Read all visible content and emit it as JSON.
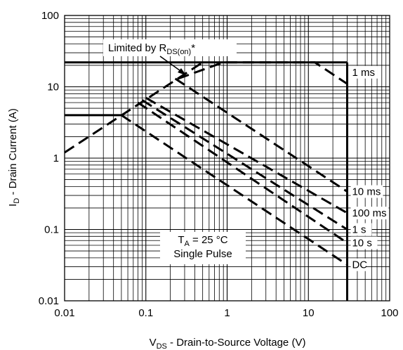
{
  "chart_data": {
    "type": "line",
    "x_scale": "log",
    "y_scale": "log",
    "xlim": [
      0.01,
      100
    ],
    "ylim": [
      0.01,
      100
    ],
    "grid": true,
    "xlabel": {
      "main": "V",
      "sub": "DS",
      "rest": " - Drain-to-Source Voltage (V)"
    },
    "ylabel": {
      "main": "I",
      "sub": "D",
      "rest": " - Drain Current (A)"
    },
    "x_ticks": [
      {
        "value": 0.01,
        "label": "0.01"
      },
      {
        "value": 0.1,
        "label": "0.1"
      },
      {
        "value": 1,
        "label": "1"
      },
      {
        "value": 10,
        "label": "10"
      },
      {
        "value": 100,
        "label": "100"
      }
    ],
    "y_ticks": [
      {
        "value": 100,
        "label": "100"
      },
      {
        "value": 10,
        "label": "10"
      },
      {
        "value": 1,
        "label": "1"
      },
      {
        "value": 0.1,
        "label": "0.1"
      },
      {
        "value": 0.01,
        "label": "0.01"
      }
    ],
    "limits": {
      "rds_on_line": [
        [
          0.01,
          1.2
        ],
        [
          0.5,
          22
        ]
      ],
      "current_limit_pulsed": [
        [
          0.01,
          22
        ],
        [
          30,
          22
        ]
      ],
      "current_limit_dc": [
        [
          0.01,
          4
        ],
        [
          0.05,
          4
        ]
      ],
      "voltage_limit": [
        [
          30,
          22
        ],
        [
          30,
          0.01
        ]
      ]
    },
    "series": [
      {
        "name": "1 ms",
        "style": "dashed",
        "points": [
          [
            0.25,
            13
          ],
          [
            0.9,
            22
          ],
          [
            12,
            22
          ],
          [
            30,
            11
          ]
        ]
      },
      {
        "name": "10 ms",
        "style": "dashed",
        "points": [
          [
            0.23,
            13
          ],
          [
            30,
            0.34
          ]
        ]
      },
      {
        "name": "100 ms",
        "style": "dashed",
        "points": [
          [
            0.1,
            7
          ],
          [
            30,
            0.17
          ]
        ]
      },
      {
        "name": "1 s",
        "style": "dashed",
        "points": [
          [
            0.09,
            6.5
          ],
          [
            30,
            0.1
          ]
        ]
      },
      {
        "name": "10 s",
        "style": "dashed",
        "points": [
          [
            0.08,
            6
          ],
          [
            30,
            0.065
          ]
        ]
      },
      {
        "name": "DC",
        "style": "dashed",
        "points": [
          [
            0.05,
            4
          ],
          [
            30,
            0.032
          ]
        ]
      }
    ],
    "annotations": {
      "limited_by": {
        "prefix": "Limited by R",
        "sub": "DS(on)",
        "suffix": "*"
      },
      "conditions_line1": {
        "prefix": "T",
        "sub": "A",
        "suffix": " = 25 °C"
      },
      "conditions_line2": "Single Pulse"
    }
  }
}
